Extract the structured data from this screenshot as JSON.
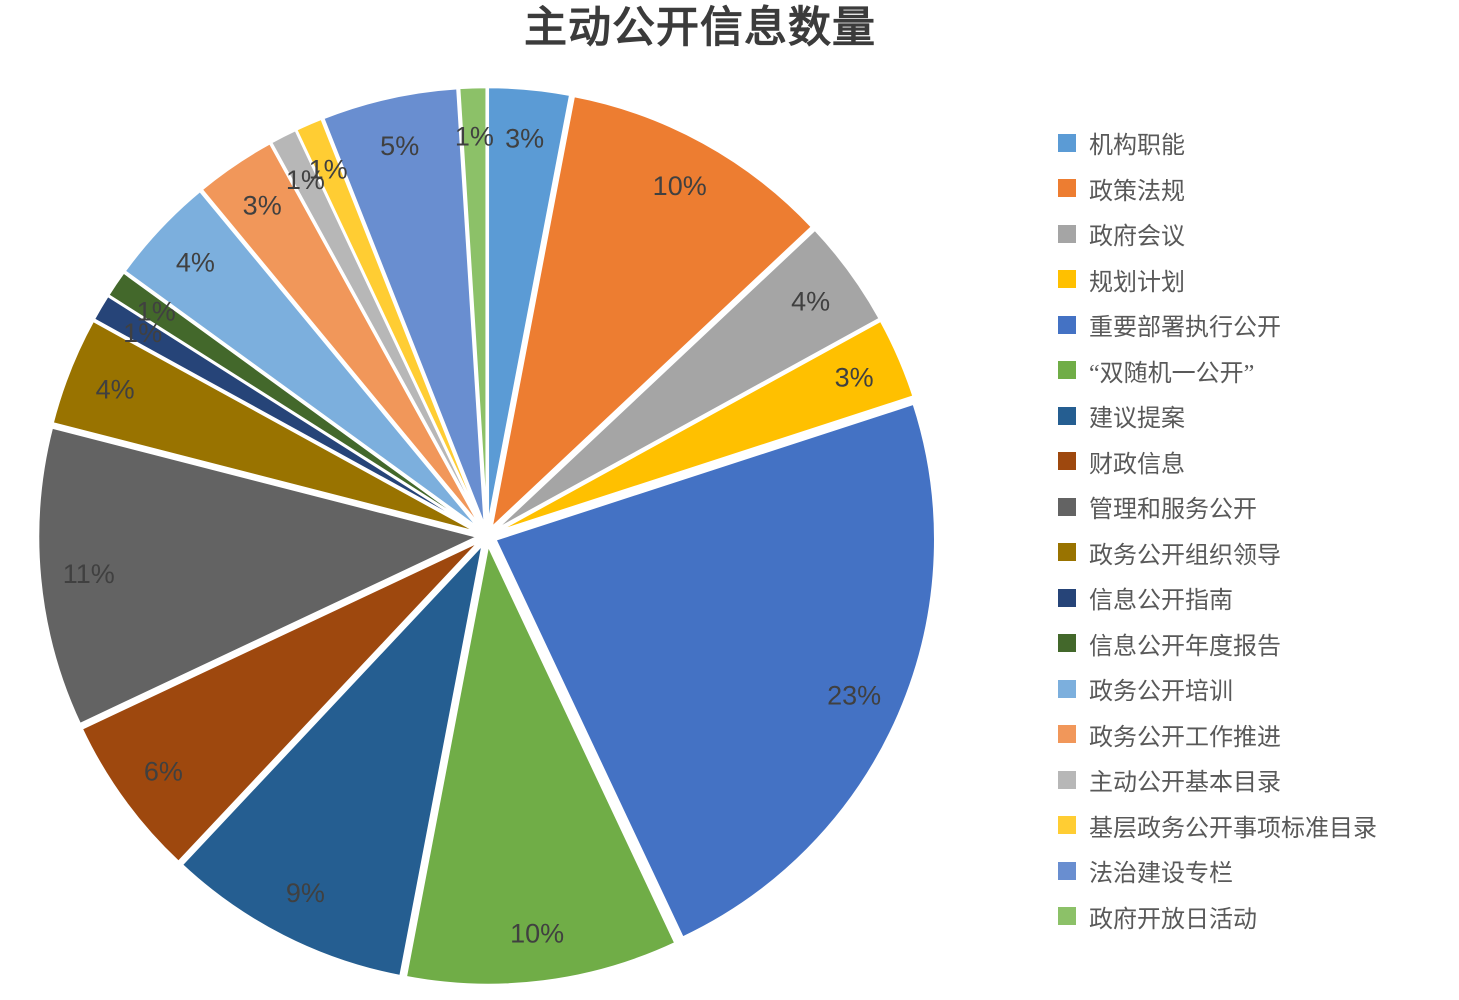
{
  "title": "主动公开信息数量",
  "chart_data": {
    "type": "pie",
    "title": "主动公开信息数量",
    "legend_position": "right",
    "direction": "clockwise",
    "start_angle_deg": 0,
    "data_label_style": "percent-inside-end",
    "data_label_color": "#404040",
    "slice_border_color": "#ffffff",
    "categories": [
      "机构职能",
      "政策法规",
      "政府会议",
      "规划计划",
      "重要部署执行公开",
      "“双随机一公开”",
      "建议提案",
      "财政信息",
      "管理和服务公开",
      "政务公开组织领导",
      "信息公开指南",
      "信息公开年度报告",
      "政务公开培训",
      "政务公开工作推进",
      "主动公开基本目录",
      "基层政务公开事项标准目录",
      "法治建设专栏",
      "政府开放日活动"
    ],
    "values": [
      3,
      10,
      4,
      3,
      23,
      10,
      9,
      6,
      11,
      4,
      1,
      1,
      4,
      3,
      1,
      1,
      5,
      1
    ],
    "percent_labels": [
      "3%",
      "10%",
      "4%",
      "3%",
      "23%",
      "10%",
      "9%",
      "6%",
      "11%",
      "4%",
      "1%",
      "1%",
      "4%",
      "3%",
      "1%",
      "1%",
      "5%",
      "1%"
    ],
    "colors": [
      "#5B9BD5",
      "#ED7D31",
      "#A5A5A5",
      "#FFC000",
      "#4472C4",
      "#70AD47",
      "#255E91",
      "#9E480E",
      "#636363",
      "#997300",
      "#264478",
      "#43682B",
      "#7CAFDD",
      "#F1975A",
      "#B7B7B7",
      "#FFCD33",
      "#698ED0",
      "#8CC168"
    ]
  }
}
